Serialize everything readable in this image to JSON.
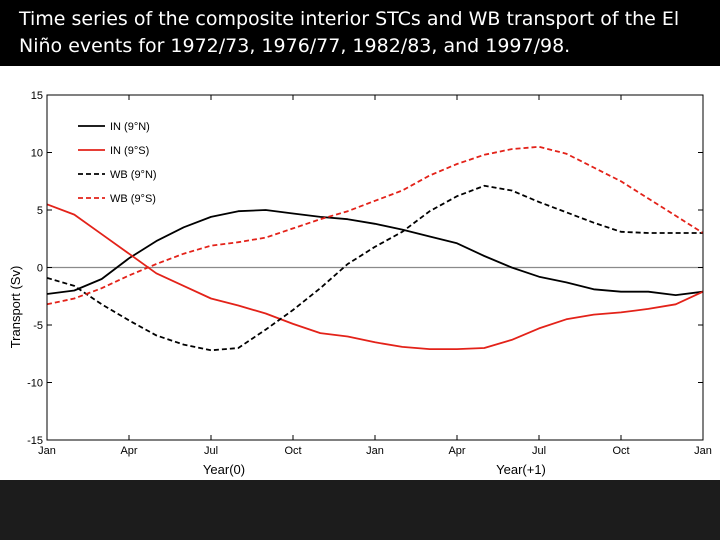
{
  "slide": {
    "caption": "Time series of the composite interior STCs and WB transport of the El Niño events for 1972/73, 1976/77, 1982/83, and 1997/98.",
    "background": "#000000",
    "caption_color": "#ffffff"
  },
  "chart_data": {
    "type": "line",
    "title": "",
    "ylabel": "Transport (Sv)",
    "xlabels": [
      "Year(0)",
      "Year(+1)"
    ],
    "ylim": [
      -15,
      15
    ],
    "yticks": [
      15,
      10,
      5,
      0,
      -5,
      -10,
      -15
    ],
    "xlim": [
      0,
      24
    ],
    "xticks": [
      {
        "x": 0,
        "label": "Jan"
      },
      {
        "x": 3,
        "label": "Apr"
      },
      {
        "x": 6,
        "label": "Jul"
      },
      {
        "x": 9,
        "label": "Oct"
      },
      {
        "x": 12,
        "label": "Jan"
      },
      {
        "x": 15,
        "label": "Apr"
      },
      {
        "x": 18,
        "label": "Jul"
      },
      {
        "x": 21,
        "label": "Oct"
      },
      {
        "x": 24,
        "label": "Jan"
      }
    ],
    "zero_line": true,
    "grid": false,
    "legend_position": "top-left",
    "x": [
      0,
      1,
      2,
      3,
      4,
      5,
      6,
      7,
      8,
      9,
      10,
      11,
      12,
      13,
      14,
      15,
      16,
      17,
      18,
      19,
      20,
      21,
      22,
      23,
      24
    ],
    "series": [
      {
        "name": "IN (9°N)",
        "color": "#000000",
        "dash": "solid",
        "values": [
          -2.3,
          -2.0,
          -1.0,
          0.8,
          2.3,
          3.5,
          4.4,
          4.9,
          5.0,
          4.7,
          4.4,
          4.2,
          3.8,
          3.3,
          2.7,
          2.1,
          1.0,
          0.0,
          -0.8,
          -1.3,
          -1.9,
          -2.1,
          -2.1,
          -2.4,
          -2.1
        ]
      },
      {
        "name": "IN (9°S)",
        "color": "#e32219",
        "dash": "solid",
        "values": [
          5.5,
          4.6,
          2.9,
          1.2,
          -0.5,
          -1.6,
          -2.7,
          -3.3,
          -4.0,
          -4.9,
          -5.7,
          -6.0,
          -6.5,
          -6.9,
          -7.1,
          -7.1,
          -7.0,
          -6.3,
          -5.3,
          -4.5,
          -4.1,
          -3.9,
          -3.6,
          -3.2,
          -2.1
        ]
      },
      {
        "name": "WB (9°N)",
        "color": "#000000",
        "dash": "dashed",
        "values": [
          -0.9,
          -1.6,
          -3.2,
          -4.6,
          -5.9,
          -6.7,
          -7.2,
          -7.0,
          -5.4,
          -3.7,
          -1.8,
          0.3,
          1.8,
          3.1,
          4.9,
          6.2,
          7.1,
          6.7,
          5.7,
          4.8,
          3.9,
          3.1,
          3.0,
          3.0,
          3.0
        ]
      },
      {
        "name": "WB (9°S)",
        "color": "#e32219",
        "dash": "dashed",
        "values": [
          -3.2,
          -2.7,
          -1.8,
          -0.7,
          0.3,
          1.2,
          1.9,
          2.2,
          2.6,
          3.4,
          4.2,
          4.9,
          5.8,
          6.7,
          8.0,
          9.0,
          9.8,
          10.3,
          10.5,
          9.9,
          8.7,
          7.5,
          6.0,
          4.5,
          3.0
        ]
      }
    ]
  }
}
